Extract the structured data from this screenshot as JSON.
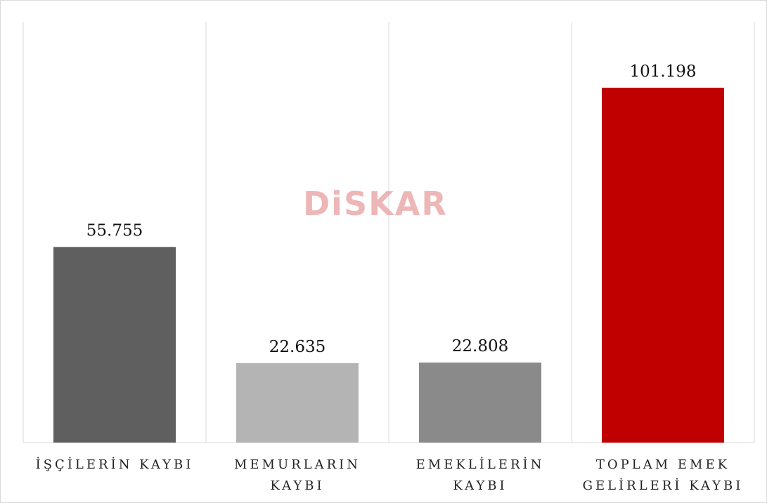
{
  "chart_data": {
    "type": "bar",
    "watermark": "DiSKAR",
    "categories": [
      "İŞÇİLERİN KAYBI",
      "MEMURLARIN KAYBI",
      "EMEKLİLERİN KAYBI",
      "TOPLAM EMEK GELİRLERİ KAYBI"
    ],
    "values": [
      55755,
      22635,
      22808,
      101198
    ],
    "value_labels": [
      "55.755",
      "22.635",
      "22.808",
      "101.198"
    ],
    "colors": [
      "#5f5f5f",
      "#b4b4b4",
      "#8a8a8a",
      "#c00000"
    ],
    "ylim": [
      0,
      120000
    ],
    "grid": true
  }
}
